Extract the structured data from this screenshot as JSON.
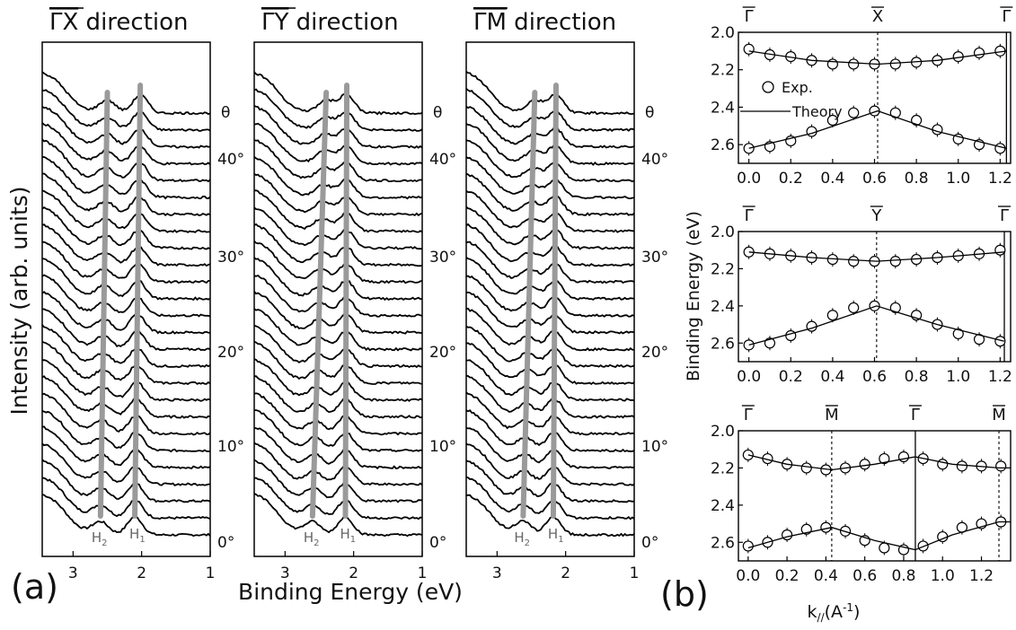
{
  "labels": {
    "panel_a": "(a)",
    "panel_b": "(b)"
  },
  "panel_a": {
    "ylabel": "Intensity (arb. units)",
    "xlabel": "Binding Energy (eV)",
    "x_ticks": [
      "3",
      "2",
      "1"
    ],
    "peak_labels": {
      "H2": "H",
      "H2_sub": "2",
      "H1": "H",
      "H1_sub": "1"
    },
    "angle_labels": [
      "θ",
      "40°",
      "30°",
      "20°",
      "10°",
      "0°"
    ]
  },
  "panel_b": {
    "ylabel": "Binding Energy (eV)",
    "xlabel": "k",
    "xlabel_sub": "//",
    "xlabel_unit": "(A",
    "xlabel_sup": "-1",
    "xlabel_close": ")",
    "legend": {
      "exp": "Exp.",
      "theory": "Theory"
    }
  },
  "chart_data": [
    {
      "type": "line",
      "title": "ΓX direction",
      "title_letters": "ΓX",
      "title_rest": " direction",
      "xlabel": "Binding Energy (eV)",
      "ylabel": "Intensity (arb. units)",
      "xlim": [
        3.45,
        1.0
      ],
      "x_reversed": true,
      "n_spectra": 26,
      "angle_range": [
        0,
        45
      ],
      "peaks": {
        "H1": {
          "start": 2.1,
          "end": 2.02
        },
        "H2": {
          "start": 2.6,
          "end": 2.5
        }
      }
    },
    {
      "type": "line",
      "title": "ΓY direction",
      "title_letters": "ΓY",
      "title_rest": " direction",
      "xlabel": "Binding Energy (eV)",
      "ylabel": "Intensity (arb. units)",
      "xlim": [
        3.45,
        1.0
      ],
      "x_reversed": true,
      "n_spectra": 26,
      "angle_range": [
        0,
        45
      ],
      "peaks": {
        "H1": {
          "start": 2.12,
          "end": 2.1
        },
        "H2": {
          "start": 2.6,
          "end": 2.4
        }
      }
    },
    {
      "type": "line",
      "title": "ΓM direction",
      "title_letters": "ΓM",
      "title_rest": " direction",
      "xlabel": "Binding Energy (eV)",
      "ylabel": "Intensity (arb. units)",
      "xlim": [
        3.45,
        1.0
      ],
      "x_reversed": true,
      "n_spectra": 26,
      "angle_range": [
        0,
        45
      ],
      "peaks": {
        "H1": {
          "start": 2.18,
          "end": 2.14
        },
        "H2": {
          "start": 2.62,
          "end": 2.45
        }
      }
    },
    {
      "type": "scatter",
      "xlim": [
        -0.05,
        1.25
      ],
      "ylim": [
        2.7,
        2.0
      ],
      "y_reversed": true,
      "x_ticks": [
        0.0,
        0.2,
        0.4,
        0.6,
        0.8,
        1.0,
        1.2
      ],
      "x_tick_labels": [
        "0.0",
        "0.2",
        "0.4",
        "0.6",
        "0.8",
        "1.0",
        "1.2"
      ],
      "y_ticks": [
        2.0,
        2.2,
        2.4,
        2.6
      ],
      "y_tick_labels": [
        "2.0",
        "2.2",
        "2.4",
        "2.6"
      ],
      "symmetry_points": [
        {
          "label": "Γ",
          "x": 0.0,
          "line": "none"
        },
        {
          "label": "X",
          "x": 0.615,
          "line": "dashed"
        },
        {
          "label": "Γ",
          "x": 1.23,
          "line": "solid"
        }
      ],
      "series": [
        {
          "name": "Exp.",
          "style": "markers",
          "x": [
            0.0,
            0.1,
            0.2,
            0.3,
            0.4,
            0.5,
            0.6,
            0.7,
            0.8,
            0.9,
            1.0,
            1.1,
            1.2
          ],
          "y": [
            2.09,
            2.12,
            2.13,
            2.15,
            2.17,
            2.17,
            2.17,
            2.17,
            2.16,
            2.15,
            2.13,
            2.11,
            2.1
          ]
        },
        {
          "name": "Exp.",
          "style": "markers",
          "x": [
            0.0,
            0.1,
            0.2,
            0.3,
            0.4,
            0.5,
            0.6,
            0.7,
            0.8,
            0.9,
            1.0,
            1.1,
            1.2
          ],
          "y": [
            2.62,
            2.61,
            2.58,
            2.53,
            2.47,
            2.43,
            2.42,
            2.43,
            2.47,
            2.52,
            2.57,
            2.6,
            2.62
          ]
        },
        {
          "name": "Theory",
          "style": "line",
          "x": [
            0.0,
            0.3,
            0.615,
            0.9,
            1.23
          ],
          "y": [
            2.1,
            2.15,
            2.17,
            2.15,
            2.1
          ]
        },
        {
          "name": "Theory",
          "style": "line",
          "x": [
            0.0,
            0.3,
            0.615,
            0.9,
            1.23
          ],
          "y": [
            2.62,
            2.54,
            2.42,
            2.53,
            2.62
          ]
        }
      ]
    },
    {
      "type": "scatter",
      "xlim": [
        -0.05,
        1.25
      ],
      "ylim": [
        2.7,
        2.0
      ],
      "y_reversed": true,
      "x_ticks": [
        0.0,
        0.2,
        0.4,
        0.6,
        0.8,
        1.0,
        1.2
      ],
      "x_tick_labels": [
        "0.0",
        "0.2",
        "0.4",
        "0.6",
        "0.8",
        "1.0",
        "1.2"
      ],
      "y_ticks": [
        2.0,
        2.2,
        2.4,
        2.6
      ],
      "y_tick_labels": [
        "2.0",
        "2.2",
        "2.4",
        "2.6"
      ],
      "symmetry_points": [
        {
          "label": "Γ",
          "x": 0.0,
          "line": "none"
        },
        {
          "label": "Y",
          "x": 0.61,
          "line": "dashed"
        },
        {
          "label": "Γ",
          "x": 1.22,
          "line": "solid"
        }
      ],
      "series": [
        {
          "name": "Exp.",
          "style": "markers",
          "x": [
            0.0,
            0.1,
            0.2,
            0.3,
            0.4,
            0.5,
            0.6,
            0.7,
            0.8,
            0.9,
            1.0,
            1.1,
            1.2
          ],
          "y": [
            2.11,
            2.12,
            2.13,
            2.14,
            2.15,
            2.16,
            2.16,
            2.16,
            2.15,
            2.14,
            2.13,
            2.12,
            2.1
          ]
        },
        {
          "name": "Exp.",
          "style": "markers",
          "x": [
            0.0,
            0.1,
            0.2,
            0.3,
            0.4,
            0.5,
            0.6,
            0.7,
            0.8,
            0.9,
            1.0,
            1.1,
            1.2
          ],
          "y": [
            2.61,
            2.6,
            2.56,
            2.51,
            2.45,
            2.41,
            2.4,
            2.41,
            2.45,
            2.5,
            2.55,
            2.58,
            2.59
          ]
        },
        {
          "name": "Theory",
          "style": "line",
          "x": [
            0.0,
            0.3,
            0.61,
            0.9,
            1.22
          ],
          "y": [
            2.11,
            2.14,
            2.16,
            2.14,
            2.11
          ]
        },
        {
          "name": "Theory",
          "style": "line",
          "x": [
            0.0,
            0.3,
            0.61,
            0.9,
            1.22
          ],
          "y": [
            2.61,
            2.52,
            2.4,
            2.5,
            2.59
          ]
        }
      ]
    },
    {
      "type": "scatter",
      "xlim": [
        -0.05,
        1.35
      ],
      "ylim": [
        2.7,
        2.0
      ],
      "y_reversed": true,
      "x_ticks": [
        0.0,
        0.2,
        0.4,
        0.6,
        0.8,
        1.0,
        1.2
      ],
      "x_tick_labels": [
        "0.0",
        "0.2",
        "0.4",
        "0.6",
        "0.8",
        "1.0",
        "1.2"
      ],
      "y_ticks": [
        2.0,
        2.2,
        2.4,
        2.6
      ],
      "y_tick_labels": [
        "2.0",
        "2.2",
        "2.4",
        "2.6"
      ],
      "symmetry_points": [
        {
          "label": "Γ",
          "x": 0.0,
          "line": "none"
        },
        {
          "label": "M",
          "x": 0.43,
          "line": "dashed"
        },
        {
          "label": "Γ",
          "x": 0.86,
          "line": "solid"
        },
        {
          "label": "M",
          "x": 1.29,
          "line": "dashed"
        }
      ],
      "series": [
        {
          "name": "Exp.",
          "style": "markers",
          "x": [
            0.0,
            0.1,
            0.2,
            0.3,
            0.4,
            0.5,
            0.6,
            0.7,
            0.8,
            0.9,
            1.0,
            1.1,
            1.2,
            1.3
          ],
          "y": [
            2.13,
            2.15,
            2.18,
            2.2,
            2.21,
            2.2,
            2.18,
            2.15,
            2.14,
            2.15,
            2.18,
            2.19,
            2.19,
            2.19
          ]
        },
        {
          "name": "Exp.",
          "style": "markers",
          "x": [
            0.0,
            0.1,
            0.2,
            0.3,
            0.4,
            0.5,
            0.6,
            0.7,
            0.8,
            0.9,
            1.0,
            1.1,
            1.2,
            1.3
          ],
          "y": [
            2.62,
            2.6,
            2.56,
            2.53,
            2.52,
            2.54,
            2.59,
            2.63,
            2.64,
            2.62,
            2.57,
            2.52,
            2.5,
            2.49
          ]
        },
        {
          "name": "Theory",
          "style": "line",
          "x": [
            0.0,
            0.2,
            0.43,
            0.65,
            0.86,
            1.05,
            1.29,
            1.35
          ],
          "y": [
            2.13,
            2.18,
            2.21,
            2.18,
            2.14,
            2.18,
            2.2,
            2.2
          ]
        },
        {
          "name": "Theory",
          "style": "line",
          "x": [
            0.0,
            0.2,
            0.43,
            0.65,
            0.86,
            1.05,
            1.29,
            1.35
          ],
          "y": [
            2.63,
            2.57,
            2.52,
            2.59,
            2.64,
            2.56,
            2.49,
            2.49
          ]
        }
      ]
    }
  ]
}
